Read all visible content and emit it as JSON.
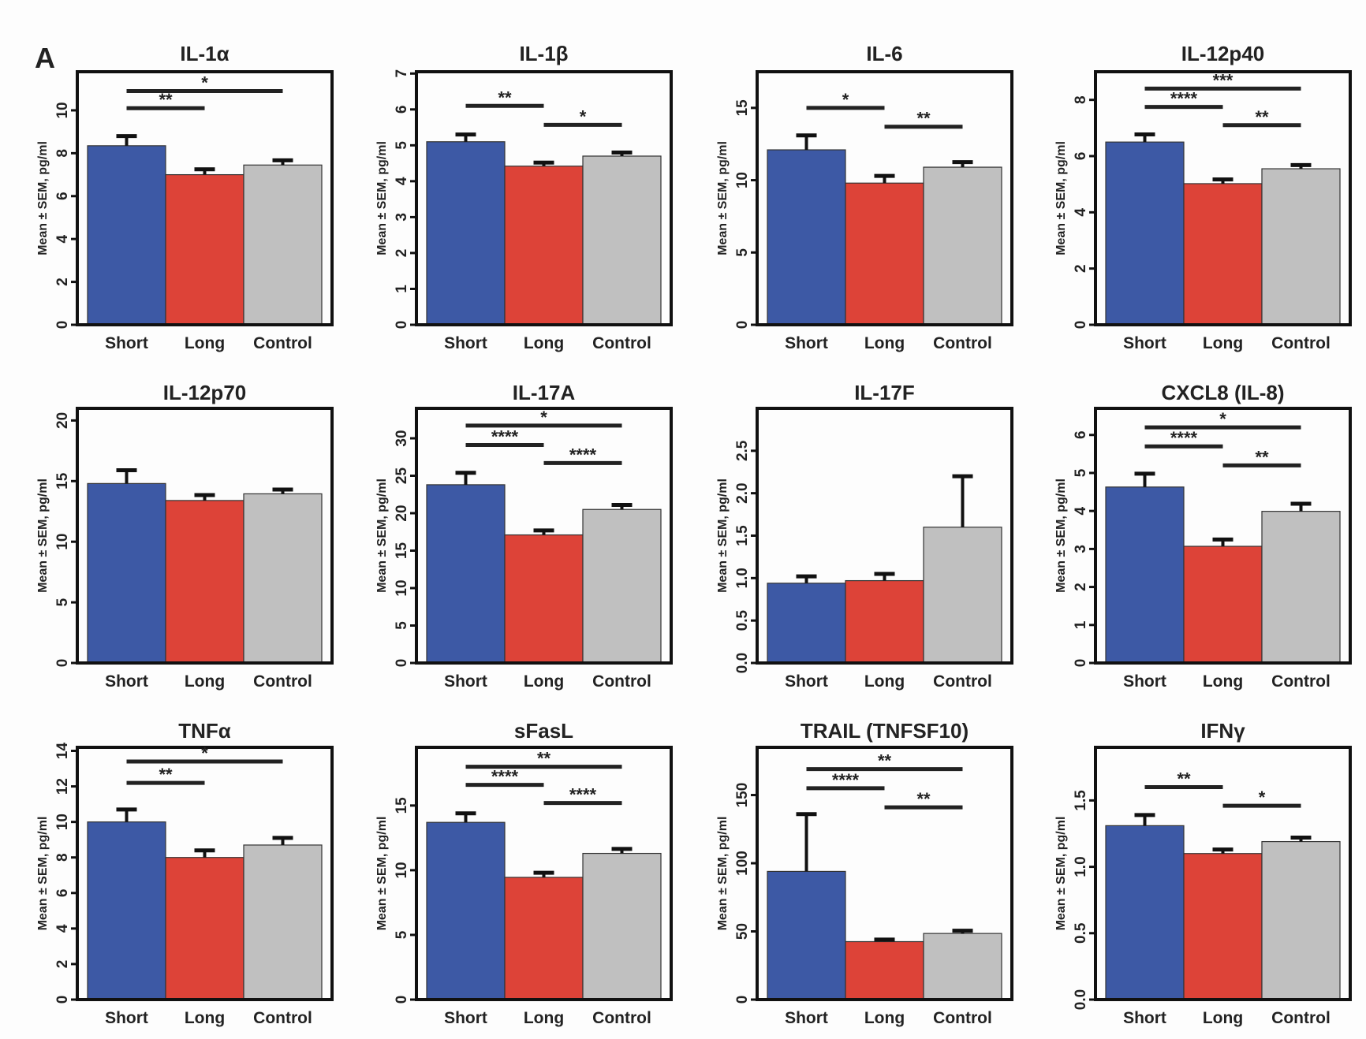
{
  "figure": {
    "panel_label": "A",
    "groups": [
      "Short",
      "Long",
      "Control"
    ],
    "colors": {
      "Short": "#3d59a5",
      "Long": "#dd4338",
      "Control": "#c0c0c0"
    },
    "ylabel": "Mean ± SEM, pg/ml"
  },
  "chart_data": [
    {
      "type": "bar",
      "title": "IL-1α",
      "categories": [
        "Short",
        "Long",
        "Control"
      ],
      "values": [
        8.35,
        7.0,
        7.45
      ],
      "sem": [
        0.45,
        0.25,
        0.22
      ],
      "ylabel": "Mean ± SEM, pg/ml",
      "ylim": [
        0,
        11.8
      ],
      "yticks": [
        0,
        2,
        4,
        6,
        8,
        10
      ],
      "ytick_labels": [
        "0",
        "2",
        "4",
        "6",
        "8",
        "10"
      ],
      "significance": [
        {
          "from": "Short",
          "to": "Long",
          "label": "**",
          "y": 10.1
        },
        {
          "from": "Short",
          "to": "Control",
          "label": "*",
          "y": 10.9
        }
      ]
    },
    {
      "type": "bar",
      "title": "IL-1β",
      "categories": [
        "Short",
        "Long",
        "Control"
      ],
      "values": [
        5.1,
        4.42,
        4.7
      ],
      "sem": [
        0.2,
        0.1,
        0.1
      ],
      "ylabel": "Mean ± SEM, pg/ml",
      "ylim": [
        0,
        7.05
      ],
      "yticks": [
        0,
        1,
        2,
        3,
        4,
        5,
        6,
        7
      ],
      "ytick_labels": [
        "0",
        "1",
        "2",
        "3",
        "4",
        "5",
        "6",
        "7"
      ],
      "significance": [
        {
          "from": "Short",
          "to": "Long",
          "label": "**",
          "y": 6.1
        },
        {
          "from": "Long",
          "to": "Control",
          "label": "*",
          "y": 5.57
        }
      ]
    },
    {
      "type": "bar",
      "title": "IL-6",
      "categories": [
        "Short",
        "Long",
        "Control"
      ],
      "values": [
        12.1,
        9.8,
        10.9
      ],
      "sem": [
        1.0,
        0.5,
        0.35
      ],
      "ylabel": "Mean ± SEM, pg/ml",
      "ylim": [
        0,
        17.5
      ],
      "yticks": [
        0,
        5,
        10,
        15
      ],
      "ytick_labels": [
        "0",
        "5",
        "10",
        "15"
      ],
      "significance": [
        {
          "from": "Short",
          "to": "Long",
          "label": "*",
          "y": 15.0
        },
        {
          "from": "Long",
          "to": "Control",
          "label": "**",
          "y": 13.7
        }
      ]
    },
    {
      "type": "bar",
      "title": "IL-12p40",
      "categories": [
        "Short",
        "Long",
        "Control"
      ],
      "values": [
        6.5,
        5.02,
        5.55
      ],
      "sem": [
        0.27,
        0.15,
        0.13
      ],
      "ylabel": "Mean ± SEM, pg/ml",
      "ylim": [
        0,
        9.0
      ],
      "yticks": [
        0,
        2,
        4,
        6,
        8
      ],
      "ytick_labels": [
        "0",
        "2",
        "4",
        "6",
        "8"
      ],
      "significance": [
        {
          "from": "Short",
          "to": "Control",
          "label": "***",
          "y": 8.4
        },
        {
          "from": "Short",
          "to": "Long",
          "label": "****",
          "y": 7.75
        },
        {
          "from": "Long",
          "to": "Control",
          "label": "**",
          "y": 7.1
        }
      ]
    },
    {
      "type": "bar",
      "title": "IL-12p70",
      "categories": [
        "Short",
        "Long",
        "Control"
      ],
      "values": [
        14.8,
        13.4,
        13.95
      ],
      "sem": [
        1.1,
        0.45,
        0.35
      ],
      "ylabel": "Mean ± SEM, pg/ml",
      "ylim": [
        0,
        21
      ],
      "yticks": [
        0,
        5,
        10,
        15,
        20
      ],
      "ytick_labels": [
        "0",
        "5",
        "10",
        "15",
        "20"
      ],
      "significance": []
    },
    {
      "type": "bar",
      "title": "IL-17A",
      "categories": [
        "Short",
        "Long",
        "Control"
      ],
      "values": [
        23.8,
        17.1,
        20.5
      ],
      "sem": [
        1.6,
        0.6,
        0.6
      ],
      "ylabel": "Mean ± SEM, pg/ml",
      "ylim": [
        0,
        34
      ],
      "yticks": [
        0,
        5,
        10,
        15,
        20,
        25,
        30
      ],
      "ytick_labels": [
        "0",
        "5",
        "10",
        "15",
        "20",
        "25",
        "30"
      ],
      "significance": [
        {
          "from": "Short",
          "to": "Control",
          "label": "*",
          "y": 31.7
        },
        {
          "from": "Short",
          "to": "Long",
          "label": "****",
          "y": 29.1
        },
        {
          "from": "Long",
          "to": "Control",
          "label": "****",
          "y": 26.7
        }
      ]
    },
    {
      "type": "bar",
      "title": "IL-17F",
      "categories": [
        "Short",
        "Long",
        "Control"
      ],
      "values": [
        0.94,
        0.97,
        1.6
      ],
      "sem": [
        0.08,
        0.08,
        0.6
      ],
      "ylabel": "Mean ± SEM, pg/ml",
      "ylim": [
        0,
        3.0
      ],
      "yticks": [
        0,
        0.5,
        1.0,
        1.5,
        2.0,
        2.5
      ],
      "ytick_labels": [
        "0.0",
        "0.5",
        "1.0",
        "1.5",
        "2.0",
        "2.5"
      ],
      "significance": []
    },
    {
      "type": "bar",
      "title": "CXCL8 (IL-8)",
      "categories": [
        "Short",
        "Long",
        "Control"
      ],
      "values": [
        4.63,
        3.07,
        3.99
      ],
      "sem": [
        0.35,
        0.18,
        0.2
      ],
      "ylabel": "Mean ± SEM, pg/ml",
      "ylim": [
        0,
        6.7
      ],
      "yticks": [
        0,
        1,
        2,
        3,
        4,
        5,
        6
      ],
      "ytick_labels": [
        "0",
        "1",
        "2",
        "3",
        "4",
        "5",
        "6"
      ],
      "significance": [
        {
          "from": "Short",
          "to": "Control",
          "label": "*",
          "y": 6.2
        },
        {
          "from": "Short",
          "to": "Long",
          "label": "****",
          "y": 5.7
        },
        {
          "from": "Long",
          "to": "Control",
          "label": "**",
          "y": 5.2
        }
      ]
    },
    {
      "type": "bar",
      "title": "TNFα",
      "categories": [
        "Short",
        "Long",
        "Control"
      ],
      "values": [
        10.0,
        8.0,
        8.7
      ],
      "sem": [
        0.7,
        0.4,
        0.4
      ],
      "ylabel": "Mean ± SEM, pg/ml",
      "ylim": [
        0,
        14.2
      ],
      "yticks": [
        0,
        2,
        4,
        6,
        8,
        10,
        12,
        14
      ],
      "ytick_labels": [
        "0",
        "2",
        "4",
        "6",
        "8",
        "10",
        "12",
        "14"
      ],
      "significance": [
        {
          "from": "Short",
          "to": "Control",
          "label": "*",
          "y": 13.4
        },
        {
          "from": "Short",
          "to": "Long",
          "label": "**",
          "y": 12.2
        }
      ]
    },
    {
      "type": "bar",
      "title": "sFasL",
      "categories": [
        "Short",
        "Long",
        "Control"
      ],
      "values": [
        13.7,
        9.45,
        11.3
      ],
      "sem": [
        0.7,
        0.35,
        0.35
      ],
      "ylabel": "Mean ± SEM, pg/ml",
      "ylim": [
        0,
        19.5
      ],
      "yticks": [
        0,
        5,
        10,
        15
      ],
      "ytick_labels": [
        "0",
        "5",
        "10",
        "15"
      ],
      "significance": [
        {
          "from": "Short",
          "to": "Control",
          "label": "**",
          "y": 18.0
        },
        {
          "from": "Short",
          "to": "Long",
          "label": "****",
          "y": 16.6
        },
        {
          "from": "Long",
          "to": "Control",
          "label": "****",
          "y": 15.2
        }
      ]
    },
    {
      "type": "bar",
      "title": "TRAIL (TNFSF10)",
      "categories": [
        "Short",
        "Long",
        "Control"
      ],
      "values": [
        94,
        42.5,
        48.5
      ],
      "sem": [
        42,
        1.5,
        2.0
      ],
      "ylabel": "Mean ± SEM, pg/ml",
      "ylim": [
        0,
        185
      ],
      "yticks": [
        0,
        50,
        100,
        150
      ],
      "ytick_labels": [
        "0",
        "50",
        "100",
        "150"
      ],
      "significance": [
        {
          "from": "Short",
          "to": "Control",
          "label": "**",
          "y": 169
        },
        {
          "from": "Short",
          "to": "Long",
          "label": "****",
          "y": 155
        },
        {
          "from": "Long",
          "to": "Control",
          "label": "**",
          "y": 141
        }
      ]
    },
    {
      "type": "bar",
      "title": "IFNγ",
      "categories": [
        "Short",
        "Long",
        "Control"
      ],
      "values": [
        1.31,
        1.1,
        1.19
      ],
      "sem": [
        0.08,
        0.03,
        0.03
      ],
      "ylabel": "Mean ± SEM, pg/ml",
      "ylim": [
        0,
        1.9
      ],
      "yticks": [
        0,
        0.5,
        1.0,
        1.5
      ],
      "ytick_labels": [
        "0.0",
        "0.5",
        "1.0",
        "1.5"
      ],
      "significance": [
        {
          "from": "Short",
          "to": "Long",
          "label": "**",
          "y": 1.6
        },
        {
          "from": "Long",
          "to": "Control",
          "label": "*",
          "y": 1.46
        }
      ]
    }
  ]
}
